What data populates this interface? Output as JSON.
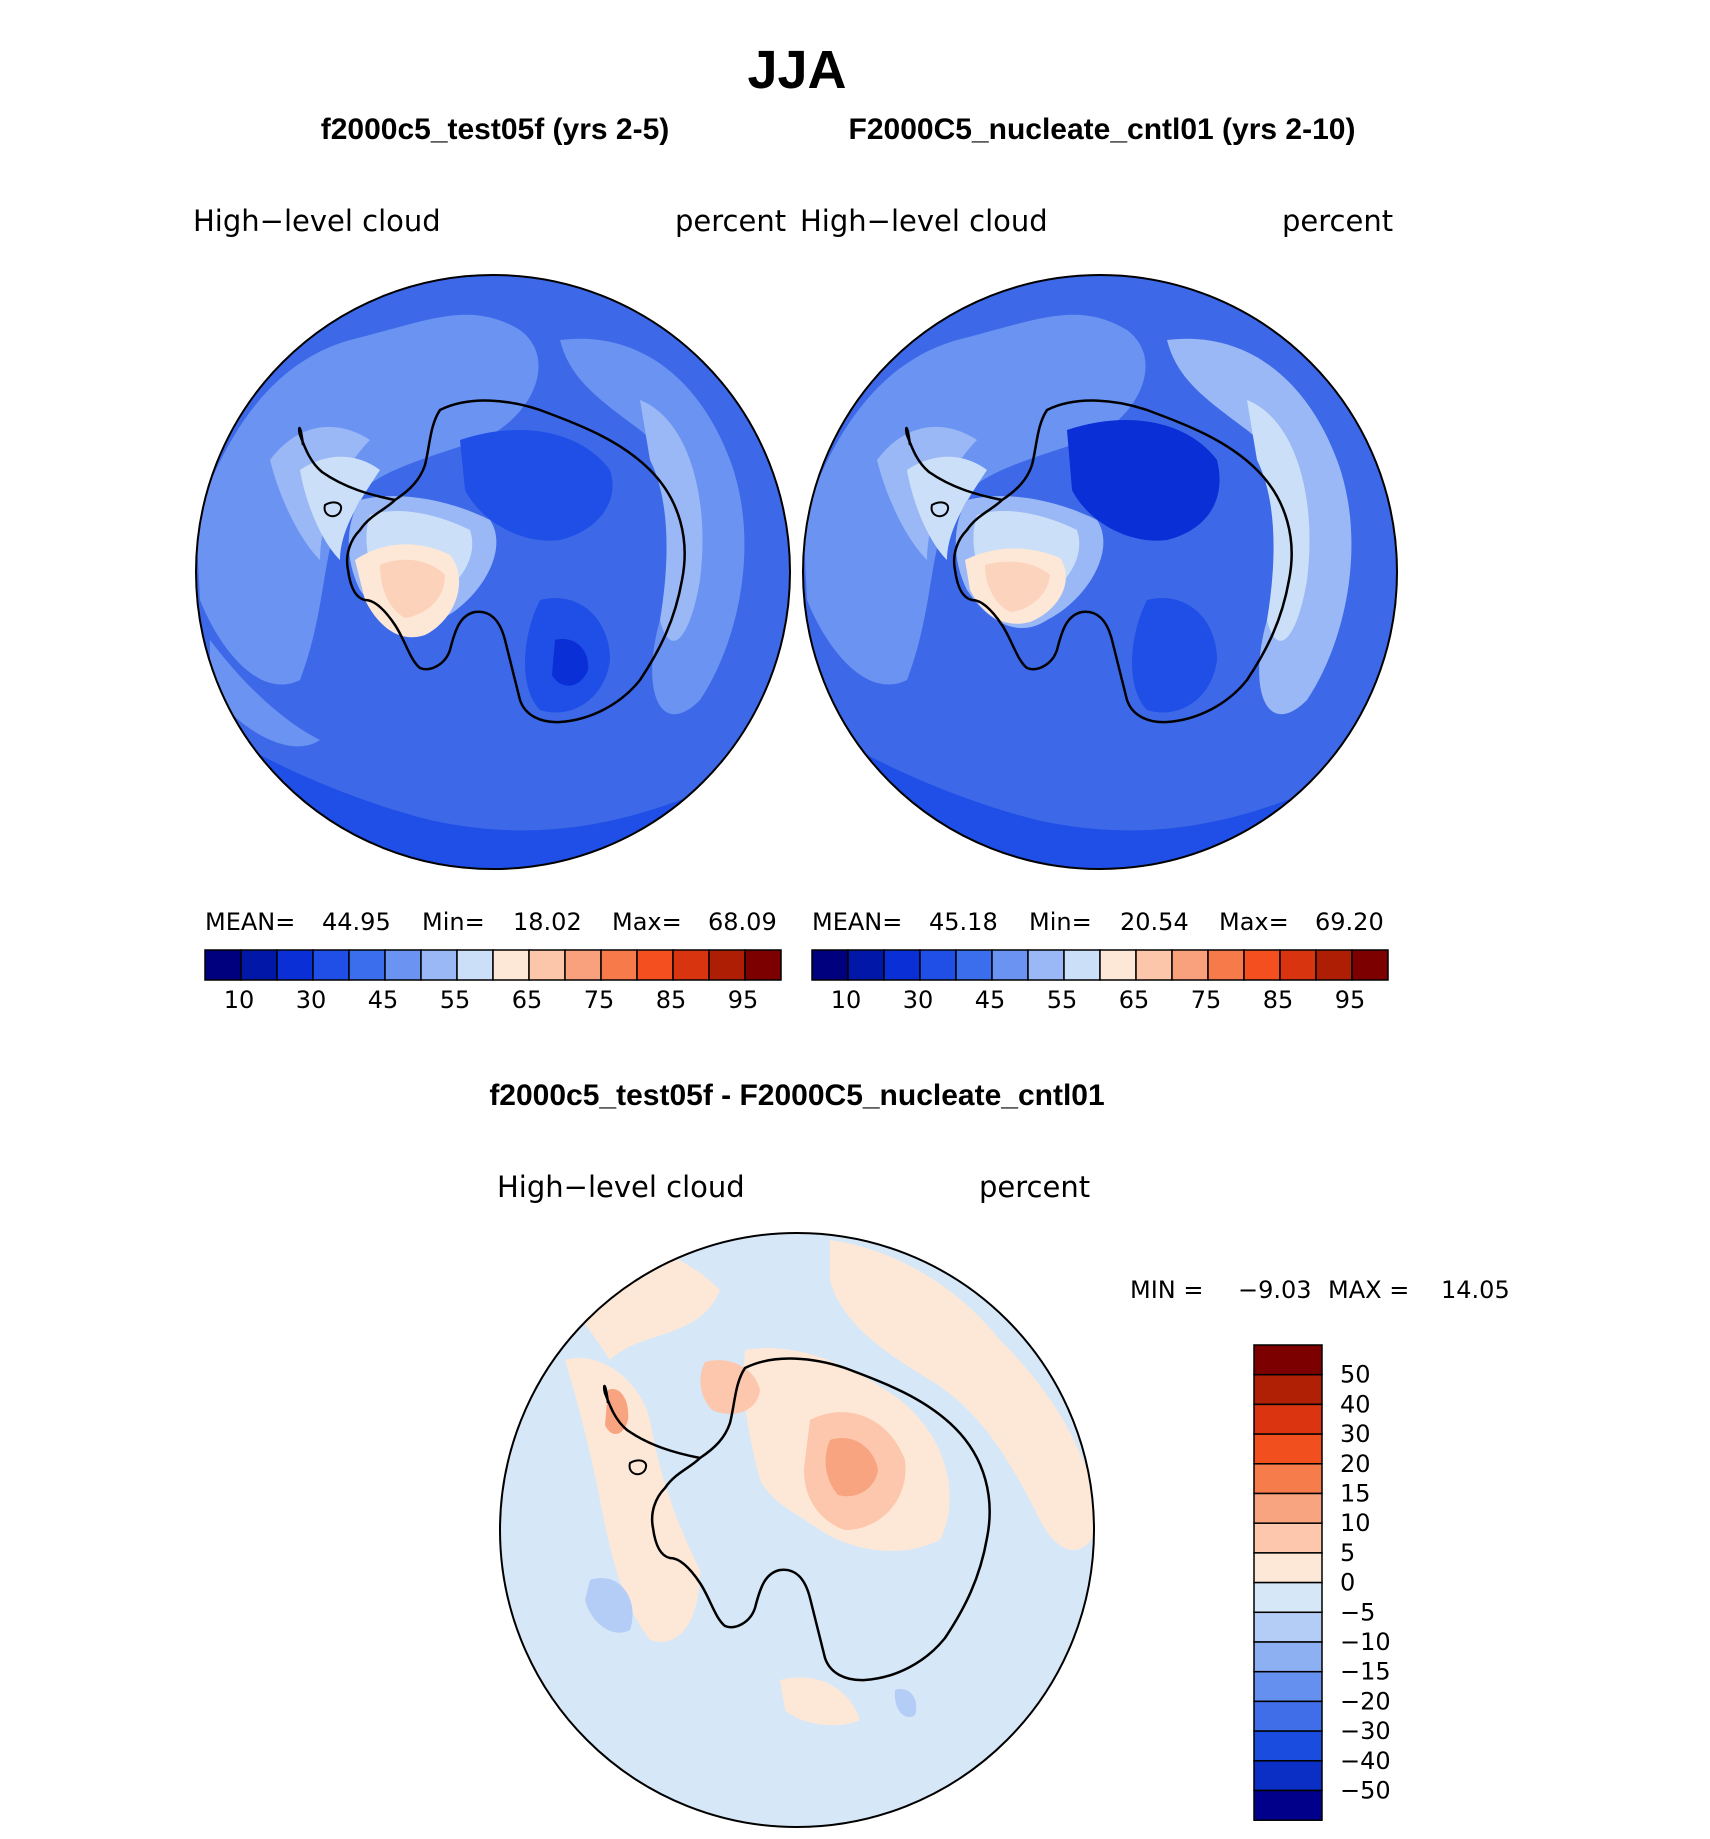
{
  "main_title": "JJA",
  "panels": [
    {
      "case_title": "f2000c5_test05f (yrs 2-5)",
      "variable": "High−level  cloud",
      "units": "percent",
      "mean_label": "MEAN=",
      "mean": "44.95",
      "min_label": "Min=",
      "min": "18.02",
      "max_label": "Max=",
      "max": "68.09"
    },
    {
      "case_title": "F2000C5_nucleate_cntl01 (yrs 2-10)",
      "variable": "High−level  cloud",
      "units": "percent",
      "mean_label": "MEAN=",
      "mean": "45.18",
      "min_label": "Min=",
      "min": "20.54",
      "max_label": "Max=",
      "max": "69.20"
    }
  ],
  "colorbar": {
    "colors": [
      "#00007f",
      "#0017a8",
      "#0a2fd6",
      "#1f4fe6",
      "#3b6eec",
      "#6b93f2",
      "#9ab8f6",
      "#cbe0f8",
      "#fde7d6",
      "#fcc6ab",
      "#f9a17c",
      "#f77a4b",
      "#f4501f",
      "#d8340f",
      "#ad1e05",
      "#7d0000"
    ],
    "ticks": [
      "10",
      "30",
      "45",
      "55",
      "65",
      "75",
      "85",
      "95"
    ]
  },
  "diff": {
    "title": "f2000c5_test05f - F2000C5_nucleate_cntl01",
    "variable": "High−level  cloud",
    "units": "percent",
    "min_label": "MIN =",
    "min": "−9.03",
    "max_label": "MAX =",
    "max": "14.05",
    "colorbar": {
      "colors_top_to_bottom": [
        "#7d0000",
        "#b02005",
        "#da3510",
        "#f24f1e",
        "#f77c4c",
        "#f9a480",
        "#fcc7ad",
        "#fde8d7",
        "#d6e7f7",
        "#b3cdf6",
        "#8db0f3",
        "#6690ef",
        "#3f6ee8",
        "#1a4ddf",
        "#0b2fc4",
        "#00008b"
      ],
      "labels": [
        "50",
        "40",
        "30",
        "20",
        "15",
        "10",
        "5",
        "0",
        "−5",
        "−10",
        "−15",
        "−20",
        "−30",
        "−40",
        "−50"
      ]
    }
  },
  "colors": {
    "map_base": "#3d69e8",
    "diff_base": "#d6e7f7",
    "coast": "#000000"
  }
}
